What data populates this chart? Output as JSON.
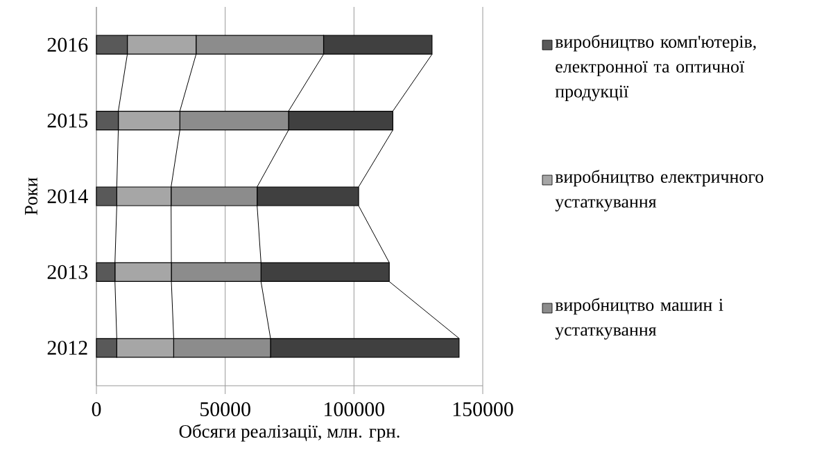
{
  "chart_data": {
    "type": "bar",
    "orientation": "horizontal",
    "stacked": true,
    "categories": [
      "2016",
      "2015",
      "2014",
      "2013",
      "2012"
    ],
    "series": [
      {
        "name": "виробництво комп'ютерів, електронної та оптичної продукції",
        "color": "#595959",
        "values": [
          12000,
          8500,
          7900,
          7200,
          7900
        ]
      },
      {
        "name": "виробництво електричного устаткування",
        "color": "#a6a6a6",
        "values": [
          26700,
          23900,
          21100,
          21900,
          22100
        ]
      },
      {
        "name": "виробництво машин і устаткування",
        "color": "#8c8c8c",
        "values": [
          49500,
          42200,
          33400,
          34800,
          37600
        ]
      },
      {
        "color": "#404040",
        "values": [
          42100,
          40500,
          39400,
          49800,
          73200
        ]
      }
    ],
    "xlim": [
      0,
      150000
    ],
    "xticks": [
      0,
      50000,
      100000,
      150000
    ],
    "xlabel": "Обсяги реалізації, млн. грн.",
    "ylabel": "Роки",
    "grid": "x",
    "legend": "right"
  }
}
